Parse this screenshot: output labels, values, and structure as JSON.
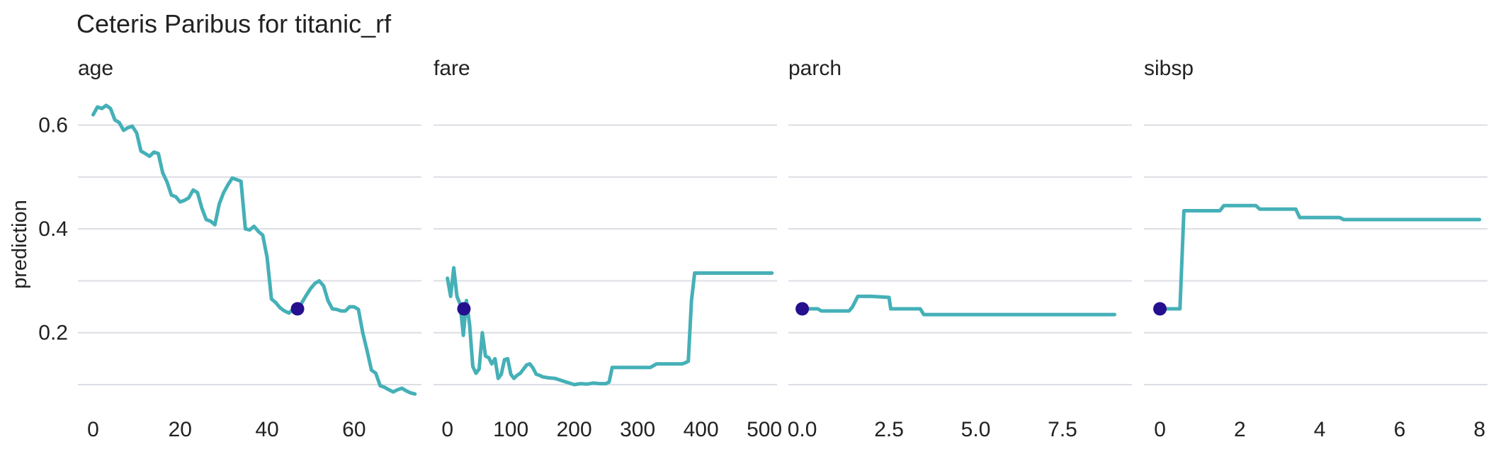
{
  "chart_data": {
    "type": "line",
    "title": "Ceteris Paribus for titanic_rf",
    "ylabel": "prediction",
    "ylim": [
      0.07,
      0.68
    ],
    "yticks": [
      0.2,
      0.4,
      0.6
    ],
    "grid": true,
    "line_color": "#45b0b7",
    "point_color": "#260f8f",
    "panels": [
      {
        "name": "age",
        "xlim": [
          -3.5,
          75.5
        ],
        "xticks": [
          0,
          20,
          40,
          60
        ],
        "xtick_labels": [
          "0",
          "20",
          "40",
          "60"
        ],
        "observation": {
          "x": 47,
          "y": 0.246
        },
        "x": [
          0,
          1,
          2,
          3,
          4,
          5,
          6,
          7,
          8,
          9,
          10,
          11,
          12,
          13,
          14,
          15,
          16,
          17,
          18,
          19,
          20,
          21,
          22,
          23,
          24,
          25,
          26,
          27,
          28,
          29,
          30,
          31,
          32,
          33,
          34,
          35,
          36,
          37,
          38,
          39,
          40,
          41,
          42,
          43,
          44,
          45,
          46,
          47,
          48,
          49,
          50,
          51,
          52,
          53,
          54,
          55,
          56,
          57,
          58,
          59,
          60,
          61,
          62,
          63,
          64,
          65,
          66,
          67,
          68,
          69,
          70,
          71,
          72,
          73,
          74
        ],
        "y": [
          0.62,
          0.635,
          0.632,
          0.638,
          0.632,
          0.61,
          0.605,
          0.59,
          0.595,
          0.598,
          0.585,
          0.55,
          0.545,
          0.54,
          0.548,
          0.545,
          0.508,
          0.49,
          0.465,
          0.462,
          0.452,
          0.455,
          0.46,
          0.475,
          0.47,
          0.44,
          0.418,
          0.415,
          0.408,
          0.448,
          0.47,
          0.485,
          0.498,
          0.495,
          0.492,
          0.4,
          0.398,
          0.405,
          0.395,
          0.388,
          0.345,
          0.265,
          0.258,
          0.248,
          0.242,
          0.238,
          0.245,
          0.242,
          0.258,
          0.272,
          0.285,
          0.295,
          0.3,
          0.29,
          0.262,
          0.246,
          0.245,
          0.242,
          0.242,
          0.25,
          0.25,
          0.245,
          0.2,
          0.165,
          0.128,
          0.122,
          0.098,
          0.095,
          0.09,
          0.086,
          0.09,
          0.093,
          0.088,
          0.084,
          0.082
        ]
      },
      {
        "name": "fare",
        "xlim": [
          -22,
          520
        ],
        "xticks": [
          0,
          100,
          200,
          300,
          400,
          500
        ],
        "xtick_labels": [
          "0",
          "100",
          "200",
          "300",
          "400",
          "500"
        ],
        "observation": {
          "x": 26,
          "y": 0.246
        },
        "x": [
          0,
          5,
          10,
          15,
          20,
          25,
          30,
          35,
          40,
          45,
          50,
          55,
          60,
          65,
          70,
          75,
          80,
          85,
          90,
          95,
          100,
          105,
          110,
          115,
          120,
          125,
          130,
          135,
          140,
          145,
          150,
          160,
          170,
          180,
          190,
          200,
          210,
          220,
          230,
          240,
          250,
          255,
          260,
          270,
          280,
          290,
          300,
          310,
          320,
          330,
          340,
          350,
          360,
          370,
          375,
          380,
          385,
          390,
          400,
          420,
          440,
          460,
          480,
          500,
          512
        ],
        "y": [
          0.305,
          0.27,
          0.325,
          0.27,
          0.255,
          0.195,
          0.262,
          0.215,
          0.135,
          0.122,
          0.13,
          0.2,
          0.155,
          0.152,
          0.14,
          0.15,
          0.112,
          0.12,
          0.148,
          0.15,
          0.12,
          0.112,
          0.118,
          0.122,
          0.13,
          0.138,
          0.14,
          0.132,
          0.12,
          0.118,
          0.115,
          0.113,
          0.112,
          0.108,
          0.104,
          0.1,
          0.102,
          0.101,
          0.103,
          0.102,
          0.102,
          0.105,
          0.133,
          0.133,
          0.133,
          0.133,
          0.133,
          0.133,
          0.133,
          0.14,
          0.14,
          0.14,
          0.14,
          0.14,
          0.142,
          0.145,
          0.262,
          0.315,
          0.315,
          0.315,
          0.315,
          0.315,
          0.315,
          0.315,
          0.315
        ]
      },
      {
        "name": "parch",
        "xlim": [
          -0.4,
          9.5
        ],
        "xticks": [
          0,
          2.5,
          5,
          7.5
        ],
        "xtick_labels": [
          "0.0",
          "2.5",
          "5.0",
          "7.5"
        ],
        "observation": {
          "x": 0,
          "y": 0.246
        },
        "x": [
          0,
          0.45,
          0.55,
          1.0,
          1.35,
          1.45,
          1.6,
          2.0,
          2.5,
          2.55,
          3.0,
          3.4,
          3.5,
          4.0,
          5.0,
          6.0,
          7.0,
          8.0,
          9.0
        ],
        "y": [
          0.246,
          0.246,
          0.242,
          0.242,
          0.242,
          0.25,
          0.27,
          0.27,
          0.268,
          0.246,
          0.246,
          0.246,
          0.235,
          0.235,
          0.235,
          0.235,
          0.235,
          0.235,
          0.235
        ]
      },
      {
        "name": "sibsp",
        "xlim": [
          -0.4,
          8.2
        ],
        "xticks": [
          0,
          2,
          4,
          6,
          8
        ],
        "xtick_labels": [
          "0",
          "2",
          "4",
          "6",
          "8"
        ],
        "observation": {
          "x": 0,
          "y": 0.246
        },
        "x": [
          0,
          0.5,
          0.6,
          1.0,
          1.5,
          1.6,
          2.0,
          2.4,
          2.5,
          3.0,
          3.4,
          3.5,
          4.0,
          4.5,
          4.6,
          5.0,
          6.0,
          7.0,
          8.0
        ],
        "y": [
          0.246,
          0.246,
          0.435,
          0.435,
          0.435,
          0.445,
          0.445,
          0.445,
          0.438,
          0.438,
          0.438,
          0.422,
          0.422,
          0.422,
          0.418,
          0.418,
          0.418,
          0.418,
          0.418
        ]
      }
    ]
  }
}
